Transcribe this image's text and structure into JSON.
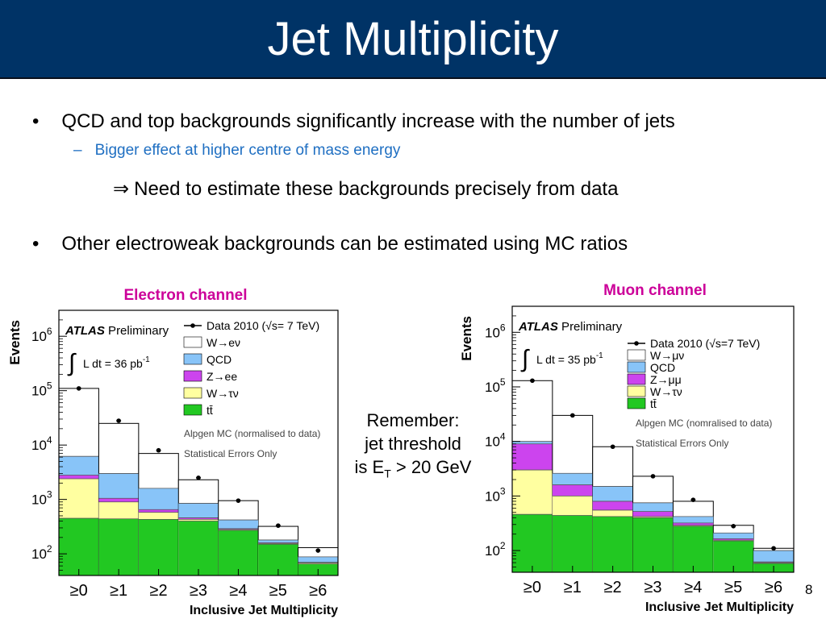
{
  "slide": {
    "title": "Jet Multiplicity",
    "page_number": "8"
  },
  "bullets": [
    {
      "marker": "•",
      "text": "QCD and top backgrounds significantly increase with the number of jets",
      "sub": {
        "marker": "–",
        "text": "Bigger effect at higher centre of mass energy"
      },
      "implication": {
        "symbol": "⇒",
        "text": "Need to estimate these backgrounds precisely from data"
      }
    },
    {
      "marker": "•",
      "text": "Other electroweak backgrounds can be estimated using MC ratios"
    }
  ],
  "remember": {
    "line1": "Remember:",
    "line2": "jet threshold",
    "line3_prefix": "is E",
    "line3_sub": "T",
    "line3_suffix": " > 20 GeV"
  },
  "colors": {
    "title_bg": "#003366",
    "sub_bullet": "#1f6fc2",
    "channel_label": "#cc0099",
    "ttbar": "#22c822",
    "wtaunu": "#ffffa0",
    "zll": "#cc44ee",
    "qcd": "#88c4f8",
    "wlnu": "#ffffff"
  },
  "chart_data": [
    {
      "type": "bar",
      "stacked": true,
      "log_y": true,
      "channel_title": "Electron channel",
      "ylabel": "Events",
      "xlabel": "Inclusive Jet Multiplicity",
      "categories": [
        "≥0",
        "≥1",
        "≥2",
        "≥3",
        "≥4",
        "≥5",
        "≥6"
      ],
      "ylim": [
        40,
        3000000
      ],
      "y_ticks": [
        {
          "value": 100,
          "base": "10",
          "exp": "2"
        },
        {
          "value": 1000,
          "base": "10",
          "exp": "3"
        },
        {
          "value": 10000,
          "base": "10",
          "exp": "4"
        },
        {
          "value": 100000,
          "base": "10",
          "exp": "5"
        },
        {
          "value": 1000000,
          "base": "10",
          "exp": "6"
        }
      ],
      "atlas_label": {
        "bold": "ATLAS",
        "rest": " Preliminary"
      },
      "lumi_label": {
        "integral": "∫",
        "text": "L dt = 36 pb",
        "sup": "-1"
      },
      "notes": [
        "Alpgen MC (normalised to data)",
        "Statistical Errors Only"
      ],
      "data_series": {
        "name": "Data 2010 (√s= 7 TeV)",
        "values": [
          110000,
          28000,
          8000,
          2500,
          950,
          330,
          115
        ]
      },
      "stack_order": [
        "tt",
        "wtaunu",
        "zll",
        "qcd",
        "wlnu"
      ],
      "series": [
        {
          "key": "wlnu",
          "name": "W→eν",
          "color": "#ffffff",
          "cumulative": [
            110000,
            25000,
            7000,
            2300,
            950,
            320,
            130
          ]
        },
        {
          "key": "qcd",
          "name": "QCD",
          "color": "#88c4f8",
          "cumulative": [
            6200,
            3000,
            1600,
            850,
            420,
            180,
            88
          ]
        },
        {
          "key": "zll",
          "name": "Z→ee",
          "color": "#cc44ee",
          "cumulative": [
            2800,
            1050,
            650,
            460,
            290,
            160,
            70
          ]
        },
        {
          "key": "wtaunu",
          "name": "W→τν",
          "color": "#ffffa0",
          "cumulative": [
            2400,
            900,
            580,
            430,
            280,
            155,
            68
          ]
        },
        {
          "key": "tt",
          "name": "tt̄",
          "color": "#22c822",
          "cumulative": [
            450,
            440,
            430,
            400,
            270,
            150,
            65
          ]
        }
      ]
    },
    {
      "type": "bar",
      "stacked": true,
      "log_y": true,
      "channel_title": "Muon channel",
      "ylabel": "Events",
      "xlabel": "Inclusive Jet  Multiplicity",
      "categories": [
        "≥0",
        "≥1",
        "≥2",
        "≥3",
        "≥4",
        "≥5",
        "≥6"
      ],
      "ylim": [
        40,
        3000000
      ],
      "y_ticks": [
        {
          "value": 100,
          "base": "10",
          "exp": "2"
        },
        {
          "value": 1000,
          "base": "10",
          "exp": "3"
        },
        {
          "value": 10000,
          "base": "10",
          "exp": "4"
        },
        {
          "value": 100000,
          "base": "10",
          "exp": "5"
        },
        {
          "value": 1000000,
          "base": "10",
          "exp": "6"
        }
      ],
      "atlas_label": {
        "bold": "ATLAS",
        "rest": " Preliminary"
      },
      "lumi_label": {
        "integral": "∫",
        "text": "L dt = 35 pb",
        "sup": "-1"
      },
      "notes": [
        "Alpgen MC (nomralised to data)",
        "Statistical Errors Only"
      ],
      "data_series": {
        "name": "Data 2010 (√s=7 TeV)",
        "values": [
          130000,
          30000,
          8000,
          2300,
          850,
          280,
          110
        ]
      },
      "stack_order": [
        "tt",
        "wtaunu",
        "zll",
        "qcd",
        "wlnu"
      ],
      "series": [
        {
          "key": "wlnu",
          "name": "W→μν",
          "color": "#ffffff",
          "cumulative": [
            130000,
            30000,
            8000,
            2300,
            800,
            290,
            110
          ]
        },
        {
          "key": "qcd",
          "name": "QCD",
          "color": "#88c4f8",
          "cumulative": [
            10000,
            2600,
            1500,
            750,
            420,
            210,
            100
          ]
        },
        {
          "key": "zll",
          "name": "Z→μμ",
          "color": "#cc44ee",
          "cumulative": [
            9000,
            1600,
            800,
            520,
            320,
            165,
            62
          ]
        },
        {
          "key": "wtaunu",
          "name": "W→τν",
          "color": "#ffffa0",
          "cumulative": [
            3000,
            1000,
            550,
            420,
            290,
            155,
            60
          ]
        },
        {
          "key": "tt",
          "name": "tt̄",
          "color": "#22c822",
          "cumulative": [
            460,
            440,
            420,
            400,
            280,
            150,
            58
          ]
        }
      ]
    }
  ]
}
